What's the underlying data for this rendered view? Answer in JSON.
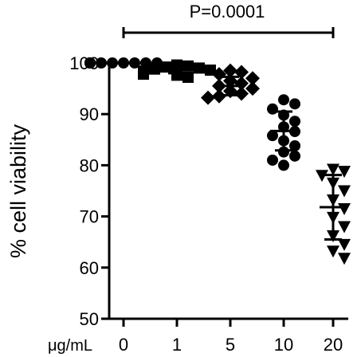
{
  "chart_data": {
    "type": "scatter",
    "ylabel": "% cell viability",
    "x_unit_label": "μg/mL",
    "categories": [
      "0",
      "1",
      "5",
      "10",
      "20"
    ],
    "ylim": [
      50,
      100
    ],
    "yticks": [
      "50",
      "60",
      "70",
      "80",
      "90",
      "100"
    ],
    "ytick_values": [
      50,
      60,
      70,
      80,
      90,
      100
    ],
    "annotation": {
      "text": "P=0.0001",
      "from_category": "0",
      "to_category": "20"
    },
    "groups": [
      {
        "category": "0",
        "marker": "circle",
        "points": [
          100,
          100,
          100,
          100,
          100,
          100,
          100,
          100,
          100,
          100,
          100,
          100
        ],
        "mean": 100,
        "sd": 0
      },
      {
        "category": "1",
        "marker": "square",
        "points": [
          99.6,
          99.4,
          99.2,
          99.0,
          98.8,
          98.6,
          98.4,
          98.2,
          98.0,
          97.8,
          97.6,
          97.2
        ],
        "mean": 98.7,
        "sd": 0.7
      },
      {
        "category": "5",
        "marker": "diamond",
        "points": [
          98.5,
          98.2,
          97.8,
          97.0,
          96.5,
          96.0,
          95.5,
          95.0,
          94.5,
          94.0,
          93.5,
          93.2
        ],
        "mean": 95.5,
        "sd": 1.8
      },
      {
        "category": "10",
        "marker": "circle",
        "points": [
          92.8,
          92.0,
          91.0,
          89.8,
          88.6,
          87.5,
          86.6,
          85.8,
          84.8,
          83.8,
          82.6,
          81.8,
          81.0,
          80.0
        ],
        "mean": 86.7,
        "sd": 3.8
      },
      {
        "category": "20",
        "marker": "triangle-down",
        "points": [
          79.2,
          78.8,
          78.0,
          76.5,
          75.0,
          73.2,
          71.5,
          69.8,
          68.0,
          66.2,
          64.5,
          63.2,
          61.8
        ],
        "mean": 71.8,
        "sd": 6.3
      }
    ]
  }
}
